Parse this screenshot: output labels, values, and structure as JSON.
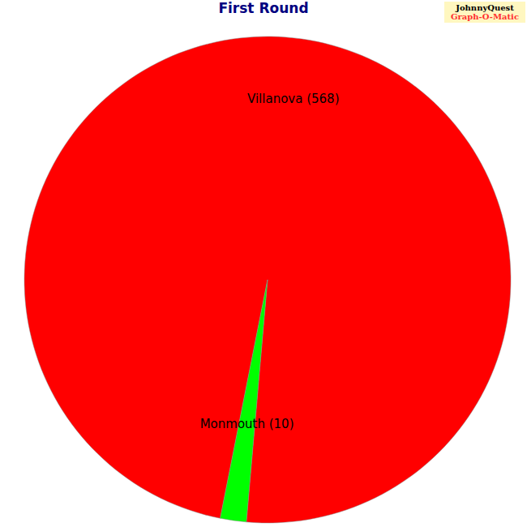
{
  "chart_data": {
    "type": "pie",
    "title": "First Round",
    "categories": [
      "Villanova",
      "Monmouth"
    ],
    "values": [
      568,
      10
    ],
    "value_labels": [
      "Villanova (568)",
      "Monmouth (10)"
    ],
    "data_labels": true,
    "colors": [
      "#ff0000",
      "#00ff00"
    ],
    "annotations": [
      "JohnnyQuest",
      "Graph-O-Matic"
    ]
  }
}
